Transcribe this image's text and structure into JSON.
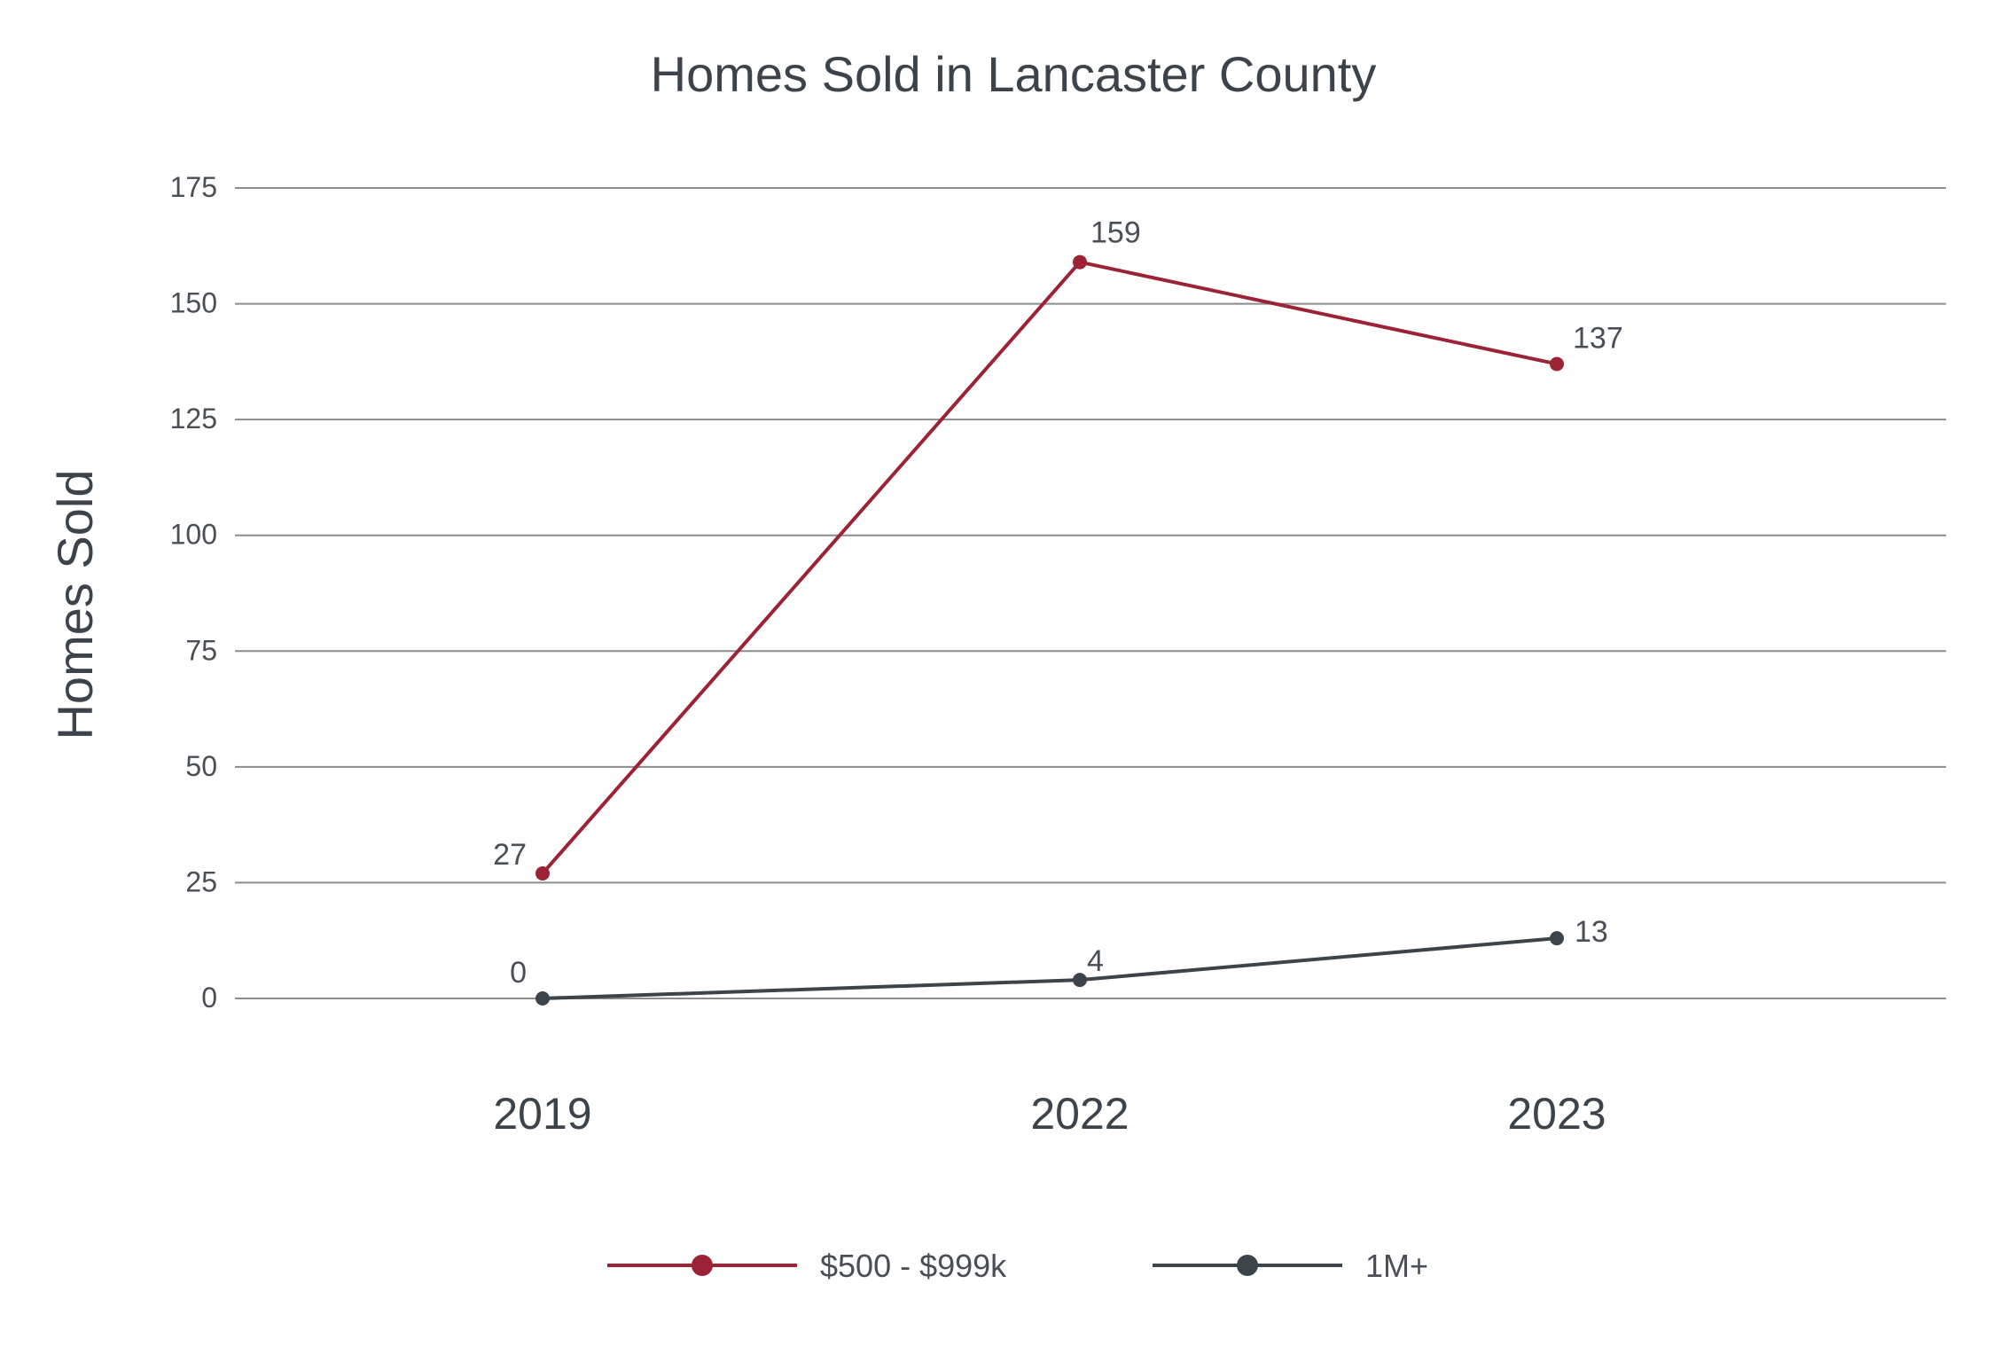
{
  "chart_data": {
    "type": "line",
    "title": "Homes Sold in Lancaster County",
    "xlabel": "",
    "ylabel": "Homes Sold",
    "categories": [
      "2019",
      "2022",
      "2023"
    ],
    "ylim": [
      0,
      175
    ],
    "yticks": [
      0,
      25,
      50,
      75,
      100,
      125,
      150,
      175
    ],
    "grid": true,
    "legend_position": "bottom",
    "series": [
      {
        "name": "$500 - $999k",
        "values": [
          27,
          159,
          137
        ],
        "labels": [
          "27",
          "159",
          "137"
        ],
        "color": "#9b2335"
      },
      {
        "name": "1M+",
        "values": [
          0,
          4,
          13
        ],
        "labels": [
          "0",
          "4",
          "13"
        ],
        "color": "#3c434a"
      }
    ]
  }
}
